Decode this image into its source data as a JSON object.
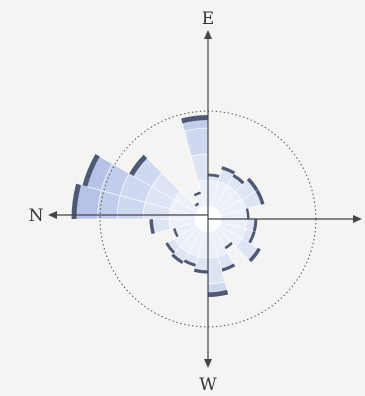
{
  "chart_data": {
    "type": "polar-bar",
    "title": "",
    "direction_labels": {
      "top": "E",
      "left": "N",
      "bottom": "W",
      "right": ""
    },
    "max_radius_value": 100,
    "reference_circle_value": 83,
    "sector_count": 24,
    "ring_bounds": [
      0,
      10,
      30,
      50,
      70,
      85
    ],
    "sectors": [
      {
        "index": 0,
        "value": 15
      },
      {
        "index": 1,
        "value": 22
      },
      {
        "index": 2,
        "value": 80
      },
      {
        "index": 3,
        "value": 35
      },
      {
        "index": 4,
        "value": 42
      },
      {
        "index": 5,
        "value": 40
      },
      {
        "index": 6,
        "value": 45
      },
      {
        "index": 7,
        "value": 45
      },
      {
        "index": 8,
        "value": 32
      },
      {
        "index": 9,
        "value": 38
      },
      {
        "index": 10,
        "value": 38
      },
      {
        "index": 11,
        "value": 47
      },
      {
        "index": 12,
        "value": 27
      },
      {
        "index": 13,
        "value": 42
      },
      {
        "index": 14,
        "value": 60
      },
      {
        "index": 15,
        "value": 42
      },
      {
        "index": 16,
        "value": 38
      },
      {
        "index": 17,
        "value": 40
      },
      {
        "index": 18,
        "value": 38
      },
      {
        "index": 19,
        "value": 28
      },
      {
        "index": 20,
        "value": 45
      },
      {
        "index": 21,
        "value": 105
      },
      {
        "index": 22,
        "value": 100
      },
      {
        "index": 23,
        "value": 70
      }
    ],
    "colors": {
      "ring_fills": [
        "#ffffff",
        "#ebeff8",
        "#dde4f4",
        "#ced8f0",
        "#c2cdec",
        "#b6c3e7"
      ],
      "cap": "#4e5a74",
      "axis": "#444444",
      "dotted_circle": "#555555",
      "background": "#f4f5f3"
    }
  }
}
